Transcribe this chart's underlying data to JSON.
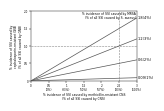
{
  "title_top": "% incidence of SSI caused by MRSA\n(% of all SSI caused by S. aureus)",
  "xlabel": "% incidence of SSI caused by methicillin-resistant CNS\n(% of all SSI caused by CNS)",
  "ylabel": "% incidence of SSI caused by\ncephalosporin-resistant GNB\n(% of all SSI caused by GNB)",
  "xlim": [
    0,
    3
  ],
  "ylim": [
    0,
    2.0
  ],
  "xtick_pos": [
    0,
    0.5,
    1.0,
    1.5,
    2.0,
    2.5,
    3.0
  ],
  "xtick_labels": [
    "0",
    "0.5\n(0%)",
    "1\n(33%)",
    "1.5\n(50%)",
    "2\n(67%)",
    "2.5\n(83%)",
    "3\n(100%)"
  ],
  "ytick_pos": [
    0,
    0.5,
    1.0,
    1.5,
    2.0
  ],
  "ytick_labels": [
    "0",
    "0.5",
    "1.0",
    "1.5",
    "2.0"
  ],
  "lines": [
    {
      "slope": 0.6,
      "intercept": 0.0,
      "label": "1.8(4%)"
    },
    {
      "slope": 0.4,
      "intercept": 0.0,
      "label": "1.2(3%)"
    },
    {
      "slope": 0.2,
      "intercept": 0.0,
      "label": "0.6(2%)"
    },
    {
      "slope": 0.03,
      "intercept": 0.0,
      "label": "0.09(1%)"
    }
  ],
  "vline_x": 2.5,
  "hline_y": 1.0,
  "line_color": "#555555",
  "ref_line_color": "#888888",
  "background_color": "#ffffff",
  "text_color": "#000000"
}
